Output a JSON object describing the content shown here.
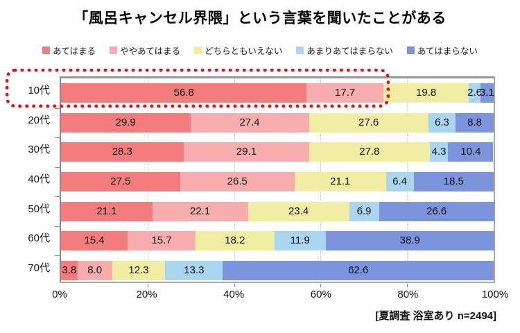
{
  "title": "「風呂キャンセル界隈」という言葉を聞いたことがある",
  "footer": "[夏調査 浴室あり n=2494]",
  "chart_data": {
    "type": "bar",
    "orientation": "horizontal",
    "stacked": true,
    "title": "「風呂キャンセル界隈」という言葉を聞いたことがある",
    "categories": [
      "10代",
      "20代",
      "30代",
      "40代",
      "50代",
      "60代",
      "70代"
    ],
    "series": [
      {
        "name": "あてはまる",
        "color": "#F47C7C",
        "values": [
          56.8,
          29.9,
          28.3,
          27.5,
          21.1,
          15.4,
          3.8
        ]
      },
      {
        "name": "ややあてはまる",
        "color": "#F8AEAE",
        "values": [
          17.7,
          27.4,
          29.1,
          26.5,
          22.1,
          15.7,
          8.0
        ]
      },
      {
        "name": "どちらともいえない",
        "color": "#F1EDA3",
        "values": [
          19.8,
          27.6,
          27.8,
          21.1,
          23.4,
          18.2,
          12.3
        ]
      },
      {
        "name": "あまりあてはまらない",
        "color": "#A9D5F0",
        "values": [
          2.6,
          6.3,
          4.3,
          6.4,
          6.9,
          11.9,
          13.3
        ]
      },
      {
        "name": "あてはまらない",
        "color": "#7C93DD",
        "values": [
          3.1,
          8.8,
          10.4,
          18.5,
          26.6,
          38.9,
          62.6
        ]
      }
    ],
    "xlim": [
      0,
      100
    ],
    "x_ticks": [
      "0%",
      "20%",
      "40%",
      "60%",
      "80%",
      "100%"
    ],
    "x_tick_values": [
      0,
      20,
      40,
      60,
      80,
      100
    ],
    "gridlines": [
      20,
      40,
      60,
      80
    ],
    "legend_position": "top",
    "value_label_format": "one_decimal",
    "highlight": {
      "category": "10代",
      "color": "#EA0D0D",
      "style": "dotted-box"
    }
  }
}
